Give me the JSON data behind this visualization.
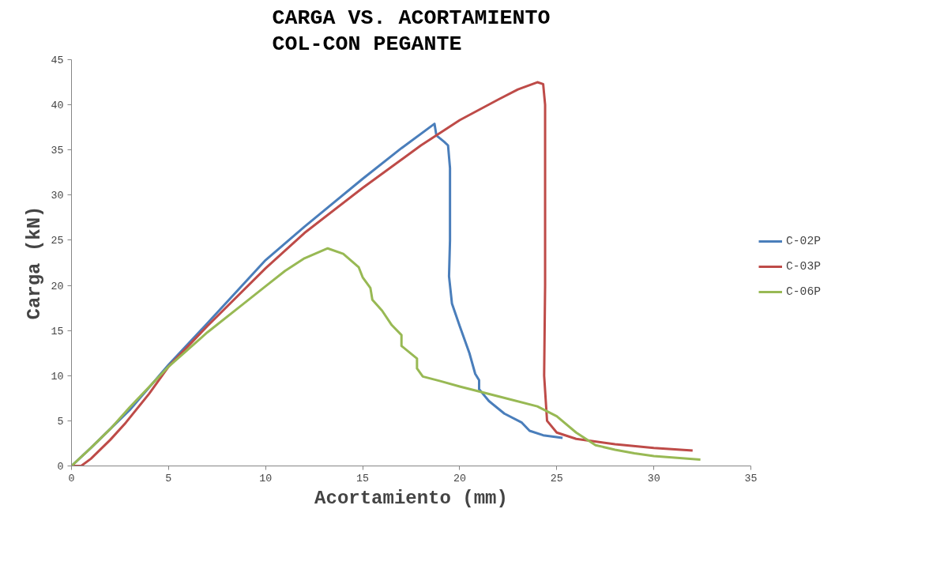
{
  "chart_data": {
    "type": "line",
    "title": "CARGA VS. ACORTAMIENTO\nCOL-CON PEGANTE",
    "xlabel": "Acortamiento (mm)",
    "ylabel": "Carga (kN)",
    "xlim": [
      0,
      35
    ],
    "ylim": [
      0,
      45
    ],
    "xticks": [
      0,
      5,
      10,
      15,
      20,
      25,
      30,
      35
    ],
    "yticks": [
      0,
      5,
      10,
      15,
      20,
      25,
      30,
      35,
      40,
      45
    ],
    "grid": false,
    "legend": "right",
    "marker": "none",
    "line_style": "solid",
    "series": [
      {
        "name": "C-02P",
        "color": "#4a7ebb",
        "x": [
          0,
          1,
          2,
          3,
          5,
          7,
          10,
          12,
          15,
          17,
          18.7,
          18.8,
          19.2,
          19.4,
          19.5,
          19.5,
          19.45,
          19.6,
          20.0,
          20.5,
          20.8,
          21.0,
          21.0,
          21.5,
          22.3,
          23.2,
          23.6,
          24.3,
          25.3
        ],
        "values": [
          0,
          2,
          4.1,
          6.2,
          11.2,
          15.8,
          22.8,
          26.5,
          31.8,
          35.2,
          37.9,
          36.6,
          35.9,
          35.5,
          33,
          25,
          21,
          18,
          15.5,
          12.5,
          10.2,
          9.5,
          8.5,
          7.2,
          5.8,
          4.8,
          3.9,
          3.4,
          3.1
        ]
      },
      {
        "name": "C-03P",
        "color": "#be4b48",
        "x": [
          0,
          0.5,
          1,
          2,
          2.8,
          4,
          5,
          7,
          10,
          12,
          15,
          18,
          20,
          22,
          23,
          24,
          24.3,
          24.4,
          24.4,
          24.35,
          24.5,
          25,
          26,
          28,
          30,
          32
        ],
        "values": [
          0,
          0,
          0.8,
          2.9,
          4.8,
          8,
          11,
          15.5,
          21.9,
          25.8,
          30.8,
          35.5,
          38.3,
          40.6,
          41.7,
          42.5,
          42.3,
          40,
          20,
          10,
          5,
          3.7,
          3,
          2.4,
          2.0,
          1.7
        ]
      },
      {
        "name": "C-06P",
        "color": "#98b954",
        "x": [
          0,
          1,
          2,
          3,
          5,
          7,
          9,
          10,
          11,
          12,
          13.2,
          14,
          14.8,
          15,
          15.4,
          15.5,
          16,
          16.5,
          17,
          17,
          17.8,
          17.8,
          18.1,
          19,
          20,
          22,
          24,
          25,
          26,
          27,
          28,
          29,
          30,
          32.4
        ],
        "values": [
          0,
          2,
          4.1,
          6.5,
          11,
          14.8,
          18.2,
          19.9,
          21.6,
          23,
          24.1,
          23.5,
          22,
          20.9,
          19.7,
          18.4,
          17.2,
          15.6,
          14.5,
          13.3,
          11.9,
          10.8,
          9.9,
          9.4,
          8.8,
          7.7,
          6.6,
          5.5,
          3.7,
          2.3,
          1.8,
          1.4,
          1.1,
          0.7
        ]
      }
    ]
  }
}
